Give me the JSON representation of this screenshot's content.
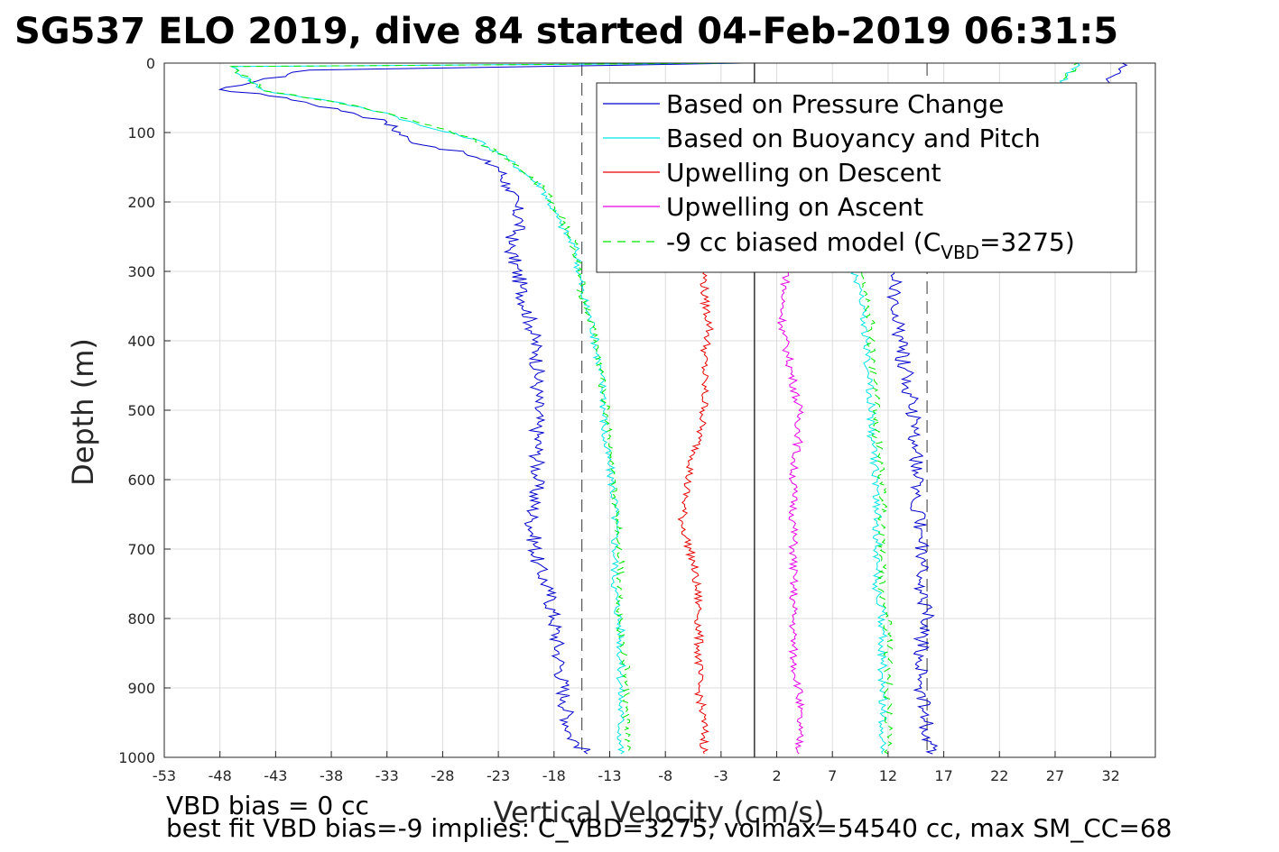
{
  "chart_data": {
    "type": "line",
    "title": "SG537 ELO 2019, dive 84 started 04-Feb-2019 06:31:5",
    "xlabel": "Vertical Velocity (cm/s)",
    "ylabel": "Depth (m)",
    "xlim": [
      -53,
      36
    ],
    "ylim": [
      0,
      1000
    ],
    "y_reversed": true,
    "grid": true,
    "legend_position": "top-right",
    "xticks": [
      -53,
      -48,
      -43,
      -38,
      -33,
      -28,
      -23,
      -18,
      -13,
      -8,
      -3,
      2,
      7,
      12,
      17,
      22,
      27,
      32
    ],
    "yticks": [
      0,
      100,
      200,
      300,
      400,
      500,
      600,
      700,
      800,
      900,
      1000
    ],
    "reference_lines": [
      {
        "x": 0,
        "style": "solid",
        "color": "#000000"
      },
      {
        "x": -15.5,
        "style": "dashed",
        "color": "#555555"
      },
      {
        "x": 15.5,
        "style": "dashed",
        "color": "#555555"
      }
    ],
    "series": [
      {
        "name": "Based on Pressure Change",
        "color": "#0000cc",
        "descent": [
          [
            -1,
            0
          ],
          [
            -40,
            10
          ],
          [
            -48,
            38
          ],
          [
            -42,
            50
          ],
          [
            -36,
            72
          ],
          [
            -33,
            85
          ],
          [
            -31,
            112
          ],
          [
            -26,
            130
          ],
          [
            -23,
            150
          ],
          [
            -22,
            180
          ],
          [
            -21,
            230
          ],
          [
            -22,
            260
          ],
          [
            -21,
            320
          ],
          [
            -20,
            380
          ],
          [
            -19.5,
            420
          ],
          [
            -19.5,
            470
          ],
          [
            -19.5,
            520
          ],
          [
            -19.5,
            560
          ],
          [
            -19.5,
            600
          ],
          [
            -20,
            660
          ],
          [
            -19.5,
            720
          ],
          [
            -18.5,
            760
          ],
          [
            -18,
            800
          ],
          [
            -17.5,
            860
          ],
          [
            -17,
            920
          ],
          [
            -16.5,
            970
          ],
          [
            -15,
            995
          ]
        ],
        "ascent": [
          [
            16,
            995
          ],
          [
            15.5,
            960
          ],
          [
            15,
            900
          ],
          [
            15,
            860
          ],
          [
            15,
            820
          ],
          [
            15.5,
            790
          ],
          [
            15,
            760
          ],
          [
            15,
            720
          ],
          [
            15,
            680
          ],
          [
            14.5,
            620
          ],
          [
            14.5,
            560
          ],
          [
            14.5,
            520
          ],
          [
            14,
            480
          ],
          [
            13.5,
            440
          ],
          [
            13,
            400
          ],
          [
            12.5,
            340
          ],
          [
            12.5,
            300
          ],
          [
            30,
            90
          ],
          [
            32,
            20
          ],
          [
            33,
            0
          ]
        ]
      },
      {
        "name": "Based on Buoyancy and Pitch",
        "color": "#00e5e5",
        "descent": [
          [
            -1,
            0
          ],
          [
            -47,
            5
          ],
          [
            -44,
            40
          ],
          [
            -38,
            55
          ],
          [
            -33,
            72
          ],
          [
            -30,
            90
          ],
          [
            -25,
            110
          ],
          [
            -22,
            140
          ],
          [
            -19,
            180
          ],
          [
            -17.5,
            230
          ],
          [
            -16,
            270
          ],
          [
            -15.5,
            330
          ],
          [
            -14.5,
            380
          ],
          [
            -14,
            430
          ],
          [
            -13.5,
            480
          ],
          [
            -13.5,
            540
          ],
          [
            -13,
            580
          ],
          [
            -12.5,
            640
          ],
          [
            -12.5,
            700
          ],
          [
            -12.5,
            760
          ],
          [
            -12,
            820
          ],
          [
            -12,
            880
          ],
          [
            -12,
            940
          ],
          [
            -12,
            995
          ]
        ],
        "ascent": [
          [
            11.5,
            995
          ],
          [
            11.5,
            940
          ],
          [
            11.5,
            880
          ],
          [
            11.5,
            840
          ],
          [
            11.5,
            790
          ],
          [
            11,
            760
          ],
          [
            11,
            720
          ],
          [
            11,
            660
          ],
          [
            11,
            600
          ],
          [
            10.5,
            540
          ],
          [
            10.5,
            480
          ],
          [
            10,
            420
          ],
          [
            10,
            380
          ],
          [
            9.5,
            330
          ],
          [
            9,
            300
          ],
          [
            28,
            20
          ],
          [
            29,
            0
          ]
        ]
      },
      {
        "name": "Upwelling on Descent",
        "color": "#e60000",
        "descent": [
          [
            -4.5,
            300
          ],
          [
            -4.5,
            340
          ],
          [
            -4,
            380
          ],
          [
            -4.5,
            420
          ],
          [
            -4.5,
            460
          ],
          [
            -4.5,
            500
          ],
          [
            -5,
            540
          ],
          [
            -6,
            600
          ],
          [
            -6.5,
            660
          ],
          [
            -5.5,
            720
          ],
          [
            -5,
            780
          ],
          [
            -5,
            840
          ],
          [
            -5,
            900
          ],
          [
            -4.5,
            960
          ],
          [
            -4.5,
            995
          ]
        ],
        "ascent": [
          [
            5,
            0
          ],
          [
            30,
            0
          ]
        ]
      },
      {
        "name": "Upwelling on Ascent",
        "color": "#e600e6",
        "descent": [
          [
            3,
            300
          ],
          [
            2.5,
            340
          ],
          [
            2.5,
            380
          ],
          [
            3,
            420
          ],
          [
            3.5,
            460
          ],
          [
            4,
            500
          ],
          [
            4,
            540
          ],
          [
            3.5,
            580
          ],
          [
            3.5,
            620
          ],
          [
            3.5,
            660
          ],
          [
            3.5,
            700
          ],
          [
            3.5,
            740
          ],
          [
            3.5,
            780
          ],
          [
            3.5,
            820
          ],
          [
            3.5,
            860
          ],
          [
            4,
            900
          ],
          [
            4,
            960
          ],
          [
            4,
            995
          ]
        ],
        "ascent": [
          [
            6,
            0
          ],
          [
            9.5,
            0
          ]
        ]
      },
      {
        "name": "-9 cc biased model (C_VBD=3275)",
        "color": "#00e600",
        "dashed": true,
        "descent": [
          [
            -1,
            0
          ],
          [
            -47,
            5
          ],
          [
            -44,
            40
          ],
          [
            -38,
            55
          ],
          [
            -33,
            72
          ],
          [
            -29,
            90
          ],
          [
            -25,
            110
          ],
          [
            -22,
            140
          ],
          [
            -19,
            180
          ],
          [
            -17,
            230
          ],
          [
            -16,
            270
          ],
          [
            -15.5,
            330
          ],
          [
            -14.5,
            380
          ],
          [
            -14,
            430
          ],
          [
            -13.5,
            480
          ],
          [
            -13,
            540
          ],
          [
            -13,
            580
          ],
          [
            -12.5,
            640
          ],
          [
            -12,
            700
          ],
          [
            -12,
            760
          ],
          [
            -12,
            820
          ],
          [
            -11.5,
            880
          ],
          [
            -11.5,
            940
          ],
          [
            -11.5,
            995
          ]
        ],
        "ascent": [
          [
            12,
            995
          ],
          [
            12,
            940
          ],
          [
            12,
            880
          ],
          [
            12,
            840
          ],
          [
            12,
            790
          ],
          [
            11.5,
            760
          ],
          [
            11.5,
            720
          ],
          [
            11.5,
            660
          ],
          [
            11.5,
            600
          ],
          [
            11,
            540
          ],
          [
            11,
            480
          ],
          [
            10.5,
            420
          ],
          [
            10.5,
            380
          ],
          [
            10,
            330
          ],
          [
            9.5,
            300
          ],
          [
            28,
            20
          ],
          [
            29,
            0
          ]
        ]
      }
    ]
  },
  "legend": {
    "items": [
      {
        "label": "Based on Pressure Change",
        "color": "#0000cc"
      },
      {
        "label": "Based on Buoyancy and Pitch",
        "color": "#00e5e5"
      },
      {
        "label": "Upwelling on Descent",
        "color": "#e60000"
      },
      {
        "label": "Upwelling on Ascent",
        "color": "#e600e6"
      },
      {
        "label_prefix": "-9 cc biased model (C",
        "label_sub": "VBD",
        "label_suffix": "=3275)",
        "color": "#00e600",
        "dashed": true
      }
    ]
  },
  "footnotes": {
    "line1": "VBD bias = 0 cc",
    "line2": "best fit VBD bias=-9 implies: C_VBD=3275, volmax=54540 cc, max SM_CC=68"
  }
}
